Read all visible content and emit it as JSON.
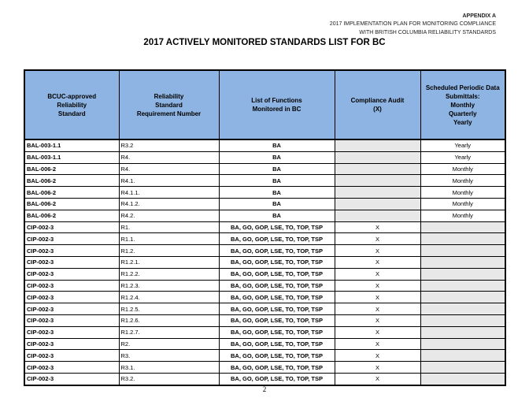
{
  "header": {
    "appendix": "APPENDIX A",
    "line1": "2017 IMPLEMENTATION PLAN FOR MONITORING COMPLIANCE",
    "line2": "WITH BRITISH COLUMBIA RELIABILITY STANDARDS"
  },
  "title": "2017 ACTIVELY MONITORED STANDARDS LIST FOR BC",
  "columns": [
    [
      "BCUC-approved",
      "Reliability",
      "Standard"
    ],
    [
      "Reliability",
      "Standard",
      "Requirement Number"
    ],
    [
      "List of Functions",
      "Monitored in BC"
    ],
    [
      "Compliance Audit",
      "(X)"
    ],
    [
      "Scheduled Periodic Data",
      "Submittals:",
      "Monthly",
      "Quarterly",
      "Yearly"
    ]
  ],
  "rows": [
    [
      "BAL-003-1.1",
      "R3.2",
      "BA",
      "",
      "Yearly"
    ],
    [
      "BAL-003-1.1",
      "R4.",
      "BA",
      "",
      "Yearly"
    ],
    [
      "BAL-006-2",
      "R4.",
      "BA",
      "",
      "Monthly"
    ],
    [
      "BAL-006-2",
      "R4.1.",
      "BA",
      "",
      "Monthly"
    ],
    [
      "BAL-006-2",
      "R4.1.1.",
      "BA",
      "",
      "Monthly"
    ],
    [
      "BAL-006-2",
      "R4.1.2.",
      "BA",
      "",
      "Monthly"
    ],
    [
      "BAL-006-2",
      "R4.2.",
      "BA",
      "",
      "Monthly"
    ],
    [
      "CIP-002-3",
      "R1.",
      "BA, GO, GOP, LSE, TO, TOP, TSP",
      "X",
      ""
    ],
    [
      "CIP-002-3",
      "R1.1.",
      "BA, GO, GOP, LSE, TO, TOP, TSP",
      "X",
      ""
    ],
    [
      "CIP-002-3",
      "R1.2.",
      "BA, GO, GOP, LSE, TO, TOP, TSP",
      "X",
      ""
    ],
    [
      "CIP-002-3",
      "R1.2.1.",
      "BA, GO, GOP, LSE, TO, TOP, TSP",
      "X",
      ""
    ],
    [
      "CIP-002-3",
      "R1.2.2.",
      "BA, GO, GOP, LSE, TO, TOP, TSP",
      "X",
      ""
    ],
    [
      "CIP-002-3",
      "R1.2.3.",
      "BA, GO, GOP, LSE, TO, TOP, TSP",
      "X",
      ""
    ],
    [
      "CIP-002-3",
      "R1.2.4.",
      "BA, GO, GOP, LSE, TO, TOP, TSP",
      "X",
      ""
    ],
    [
      "CIP-002-3",
      "R1.2.5.",
      "BA, GO, GOP, LSE, TO, TOP, TSP",
      "X",
      ""
    ],
    [
      "CIP-002-3",
      "R1.2.6.",
      "BA, GO, GOP, LSE, TO, TOP, TSP",
      "X",
      ""
    ],
    [
      "CIP-002-3",
      "R1.2.7.",
      "BA, GO, GOP, LSE, TO, TOP, TSP",
      "X",
      ""
    ],
    [
      "CIP-002-3",
      "R2.",
      "BA, GO, GOP, LSE, TO, TOP, TSP",
      "X",
      ""
    ],
    [
      "CIP-002-3",
      "R3.",
      "BA, GO, GOP, LSE, TO, TOP, TSP",
      "X",
      ""
    ],
    [
      "CIP-002-3",
      "R3.1.",
      "BA, GO, GOP, LSE, TO, TOP, TSP",
      "X",
      ""
    ],
    [
      "CIP-002-3",
      "R3.2.",
      "BA, GO, GOP, LSE, TO, TOP, TSP",
      "X",
      ""
    ]
  ],
  "page_number": "2",
  "colors": {
    "header_fill": "#8db4e2",
    "empty_cell_fill": "#e8e8e8"
  }
}
